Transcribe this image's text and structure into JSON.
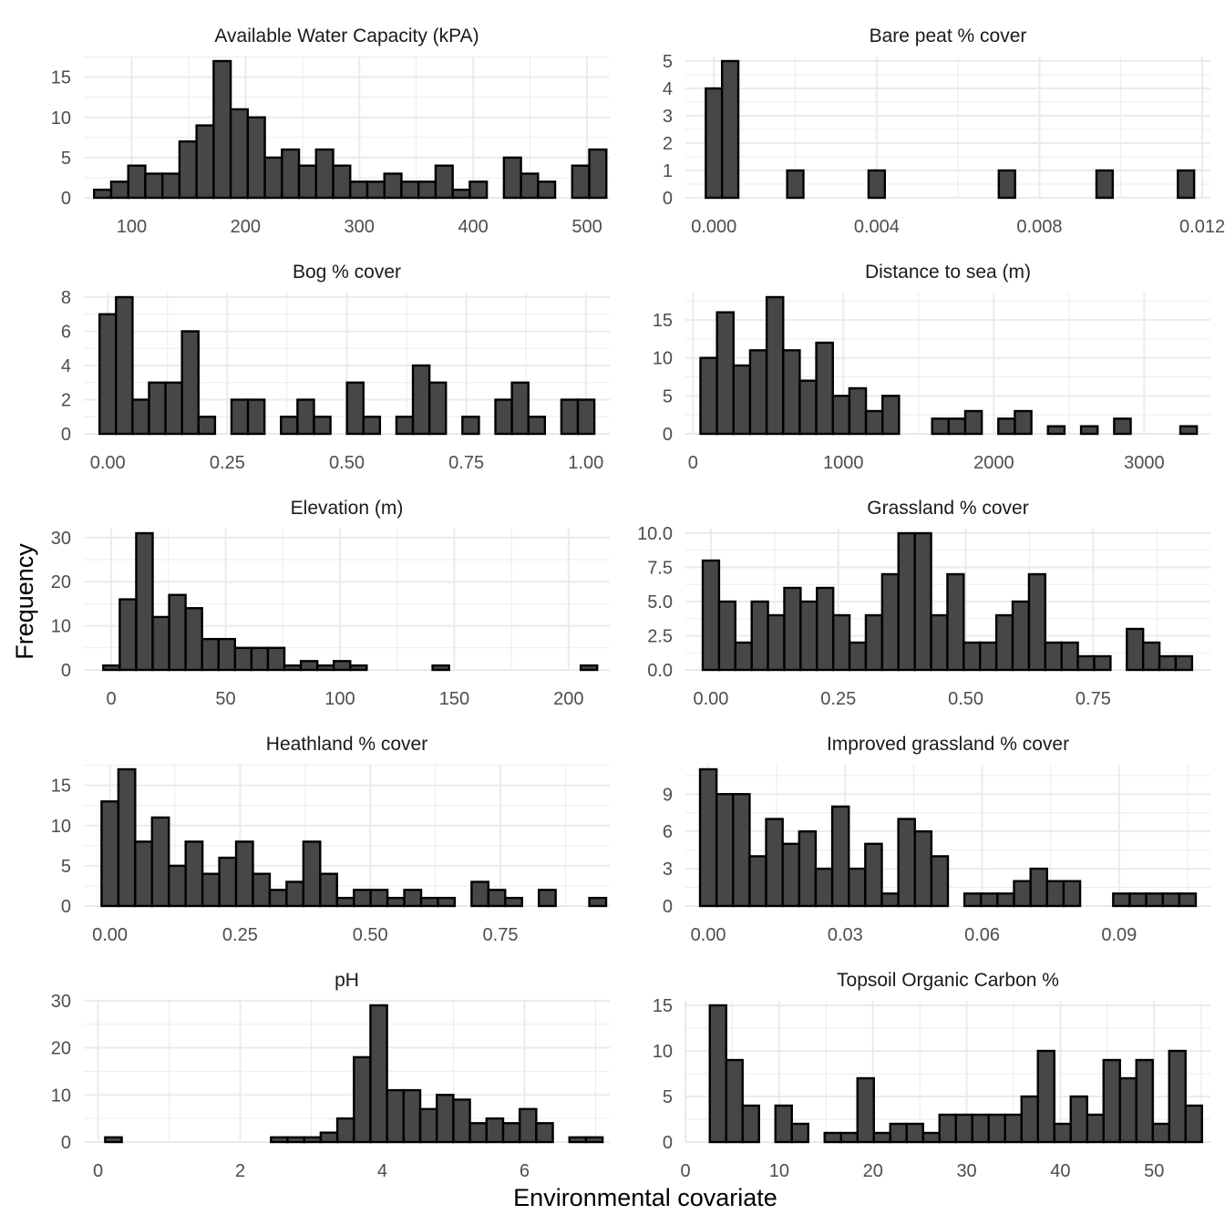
{
  "figure": {
    "xlabel": "Environmental covariate",
    "ylabel": "Frequency",
    "bar_fill": "#474747",
    "bar_stroke": "#000000",
    "grid_color": "#ebebeb"
  },
  "chart_data": [
    {
      "type": "bar",
      "title": "Available Water Capacity (kPA)",
      "xlim": [
        58,
        520
      ],
      "ylim": [
        0,
        17
      ],
      "x_ticks": [
        100,
        200,
        300,
        400,
        500
      ],
      "x_tick_labels": [
        "100",
        "200",
        "300",
        "400",
        "500"
      ],
      "y_ticks": [
        0,
        5,
        10,
        15
      ],
      "y_tick_labels": [
        "0",
        "5",
        "10",
        "15"
      ],
      "bin_start": 67,
      "bin_width": 15,
      "counts": [
        1,
        2,
        4,
        3,
        3,
        7,
        9,
        17,
        11,
        10,
        5,
        6,
        4,
        6,
        4,
        2,
        2,
        3,
        2,
        2,
        4,
        1,
        2,
        0,
        5,
        3,
        2,
        0,
        4,
        6
      ]
    },
    {
      "type": "bar",
      "title": "Bare peat % cover",
      "xlim": [
        -0.0007,
        0.0122
      ],
      "ylim": [
        0,
        5
      ],
      "x_ticks": [
        0,
        0.004,
        0.008,
        0.012
      ],
      "x_tick_labels": [
        "0.000",
        "0.004",
        "0.008",
        "0.012"
      ],
      "y_ticks": [
        0,
        1,
        2,
        3,
        4,
        5
      ],
      "y_tick_labels": [
        "0",
        "1",
        "2",
        "3",
        "4",
        "5"
      ],
      "bin_start": -0.0002,
      "bin_width": 0.0004,
      "counts": [
        4,
        5,
        0,
        0,
        0,
        1,
        0,
        0,
        0,
        0,
        1,
        0,
        0,
        0,
        0,
        0,
        0,
        0,
        1,
        0,
        0,
        0,
        0,
        0,
        1,
        0,
        0,
        0,
        0,
        1
      ]
    },
    {
      "type": "bar",
      "title": "Bog % cover",
      "xlim": [
        -0.05,
        1.05
      ],
      "ylim": [
        0,
        8
      ],
      "x_ticks": [
        0,
        0.25,
        0.5,
        0.75,
        1
      ],
      "x_tick_labels": [
        "0.00",
        "0.25",
        "0.50",
        "0.75",
        "1.00"
      ],
      "y_ticks": [
        0,
        2,
        4,
        6,
        8
      ],
      "y_tick_labels": [
        "0",
        "2",
        "4",
        "6",
        "8"
      ],
      "bin_start": -0.0172,
      "bin_width": 0.0345,
      "counts": [
        7,
        8,
        2,
        3,
        3,
        6,
        1,
        0,
        2,
        2,
        0,
        1,
        2,
        1,
        0,
        3,
        1,
        0,
        1,
        4,
        3,
        0,
        1,
        0,
        2,
        3,
        1,
        0,
        2,
        2
      ]
    },
    {
      "type": "bar",
      "title": "Distance to sea (m)",
      "xlim": [
        -50,
        3440
      ],
      "ylim": [
        0,
        18
      ],
      "x_ticks": [
        0,
        1000,
        2000,
        3000
      ],
      "x_tick_labels": [
        "0",
        "1000",
        "2000",
        "3000"
      ],
      "y_ticks": [
        0,
        5,
        10,
        15
      ],
      "y_tick_labels": [
        "0",
        "5",
        "10",
        "15"
      ],
      "bin_start": 50,
      "bin_width": 110,
      "counts": [
        10,
        16,
        9,
        11,
        18,
        11,
        7,
        12,
        5,
        6,
        3,
        5,
        0,
        0,
        2,
        2,
        3,
        0,
        2,
        3,
        0,
        1,
        0,
        1,
        0,
        2,
        0,
        0,
        0,
        1
      ]
    },
    {
      "type": "bar",
      "title": "Elevation (m)",
      "xlim": [
        -12,
        218
      ],
      "ylim": [
        0,
        31
      ],
      "x_ticks": [
        0,
        50,
        100,
        150,
        200
      ],
      "x_tick_labels": [
        "0",
        "50",
        "100",
        "150",
        "200"
      ],
      "y_ticks": [
        0,
        10,
        20,
        30
      ],
      "y_tick_labels": [
        "0",
        "10",
        "20",
        "30"
      ],
      "bin_start": -3.5,
      "bin_width": 7.2,
      "counts": [
        1,
        16,
        31,
        12,
        17,
        14,
        7,
        7,
        5,
        5,
        5,
        1,
        2,
        1,
        2,
        1,
        0,
        0,
        0,
        0,
        1,
        0,
        0,
        0,
        0,
        0,
        0,
        0,
        0,
        1
      ]
    },
    {
      "type": "bar",
      "title": "Grassland % cover",
      "xlim": [
        -0.05,
        0.98
      ],
      "ylim": [
        0,
        10
      ],
      "x_ticks": [
        0,
        0.25,
        0.5,
        0.75
      ],
      "x_tick_labels": [
        "0.00",
        "0.25",
        "0.50",
        "0.75"
      ],
      "y_ticks": [
        0,
        2.5,
        5,
        7.5,
        10
      ],
      "y_tick_labels": [
        "0.0",
        "2.5",
        "5.0",
        "7.5",
        "10.0"
      ],
      "bin_start": -0.016,
      "bin_width": 0.032,
      "counts": [
        8,
        5,
        2,
        5,
        4,
        6,
        5,
        6,
        4,
        2,
        4,
        7,
        10,
        10,
        4,
        7,
        2,
        2,
        4,
        5,
        7,
        2,
        2,
        1,
        1,
        0,
        3,
        2,
        1,
        1
      ]
    },
    {
      "type": "bar",
      "title": "Heathland % cover",
      "xlim": [
        -0.05,
        0.96
      ],
      "ylim": [
        0,
        17
      ],
      "x_ticks": [
        0,
        0.25,
        0.5,
        0.75
      ],
      "x_tick_labels": [
        "0.00",
        "0.25",
        "0.50",
        "0.75"
      ],
      "y_ticks": [
        0,
        5,
        10,
        15
      ],
      "y_tick_labels": [
        "0",
        "5",
        "10",
        "15"
      ],
      "bin_start": -0.016,
      "bin_width": 0.0323,
      "counts": [
        13,
        17,
        8,
        11,
        5,
        8,
        4,
        6,
        8,
        4,
        2,
        3,
        8,
        4,
        1,
        2,
        2,
        1,
        2,
        1,
        1,
        0,
        3,
        2,
        1,
        0,
        2,
        0,
        0,
        1
      ]
    },
    {
      "type": "bar",
      "title": "Improved grassland % cover",
      "xlim": [
        -0.005,
        0.11
      ],
      "ylim": [
        0,
        11
      ],
      "x_ticks": [
        0,
        0.03,
        0.06,
        0.09
      ],
      "x_tick_labels": [
        "0.00",
        "0.03",
        "0.06",
        "0.09"
      ],
      "y_ticks": [
        0,
        3,
        6,
        9
      ],
      "y_tick_labels": [
        "0",
        "3",
        "6",
        "9"
      ],
      "bin_start": -0.0018,
      "bin_width": 0.00362,
      "counts": [
        11,
        9,
        9,
        4,
        7,
        5,
        6,
        3,
        8,
        3,
        5,
        1,
        7,
        6,
        4,
        0,
        1,
        1,
        1,
        2,
        3,
        2,
        2,
        0,
        0,
        1,
        1,
        1,
        1,
        1
      ]
    },
    {
      "type": "bar",
      "title": "pH",
      "xlim": [
        -0.2,
        7.2
      ],
      "ylim": [
        0,
        29
      ],
      "x_ticks": [
        0,
        2,
        4,
        6
      ],
      "x_tick_labels": [
        "0",
        "2",
        "4",
        "6"
      ],
      "y_ticks": [
        0,
        10,
        20,
        30
      ],
      "y_tick_labels": [
        "0",
        "10",
        "20",
        "30"
      ],
      "bin_start": 0.1,
      "bin_width": 0.2333,
      "counts": [
        1,
        0,
        0,
        0,
        0,
        0,
        0,
        0,
        0,
        0,
        1,
        1,
        1,
        2,
        5,
        18,
        29,
        11,
        11,
        7,
        10,
        9,
        4,
        5,
        4,
        7,
        4,
        0,
        1,
        1
      ]
    },
    {
      "type": "bar",
      "title": "Topsoil Organic Carbon %",
      "xlim": [
        0,
        56
      ],
      "ylim": [
        0,
        15
      ],
      "x_ticks": [
        0,
        10,
        20,
        30,
        40,
        50
      ],
      "x_tick_labels": [
        "0",
        "10",
        "20",
        "30",
        "40",
        "50"
      ],
      "y_ticks": [
        0,
        5,
        10,
        15
      ],
      "y_tick_labels": [
        "0",
        "5",
        "10",
        "15"
      ],
      "bin_start": 2.6,
      "bin_width": 1.75,
      "counts": [
        15,
        9,
        4,
        0,
        4,
        2,
        0,
        1,
        1,
        7,
        1,
        2,
        2,
        1,
        3,
        3,
        3,
        3,
        3,
        5,
        10,
        2,
        5,
        3,
        9,
        7,
        9,
        2,
        10,
        4
      ]
    }
  ]
}
